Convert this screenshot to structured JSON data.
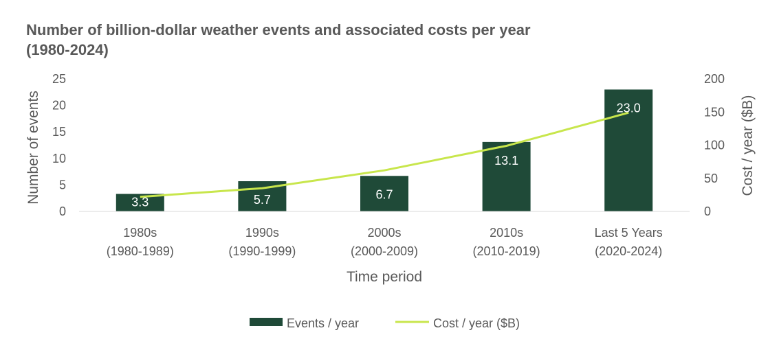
{
  "colors": {
    "bar": "#1f4a38",
    "line": "#c8e64c",
    "axis": "#d9d9d9",
    "text": "#595959"
  },
  "chart_data": {
    "type": "bar",
    "title_lines": [
      "Number of billion-dollar weather events and associated costs per year",
      "(1980-2024)"
    ],
    "categories": [
      [
        "1980s",
        "(1980-1989)"
      ],
      [
        "1990s",
        "(1990-1999)"
      ],
      [
        "2000s",
        "(2000-2009)"
      ],
      [
        "2010s",
        "(2010-2019)"
      ],
      [
        "Last 5 Years",
        "(2020-2024)"
      ]
    ],
    "xlabel": "Time period",
    "ylabel": "Number of events",
    "y2label": "Cost / year ($B)",
    "ylim": [
      0,
      25
    ],
    "y_ticks": [
      0,
      5,
      10,
      15,
      20,
      25
    ],
    "y2lim": [
      0,
      200
    ],
    "y2_ticks": [
      0,
      50,
      100,
      150,
      200
    ],
    "series": [
      {
        "name": "Events / year",
        "type": "bar",
        "axis": "left",
        "values": [
          3.3,
          5.7,
          6.7,
          13.1,
          23.0
        ],
        "labels": [
          "3.3",
          "5.7",
          "6.7",
          "13.1",
          "23.0"
        ]
      },
      {
        "name": "Cost / year ($B)",
        "type": "line",
        "axis": "right",
        "values": [
          22,
          35,
          62,
          99,
          149
        ]
      }
    ],
    "legend_position": "bottom"
  }
}
